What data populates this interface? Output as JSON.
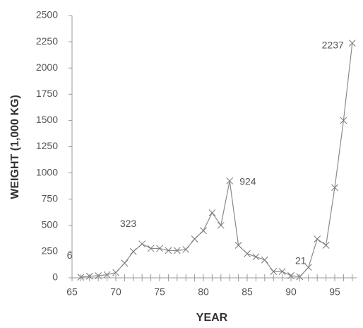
{
  "chart_data": {
    "type": "line",
    "x_label": "YEAR",
    "y_label": "WEIGHT (1,000 KG)",
    "x": [
      66,
      67,
      68,
      69,
      70,
      71,
      72,
      73,
      74,
      75,
      76,
      77,
      78,
      79,
      80,
      81,
      82,
      83,
      84,
      85,
      86,
      87,
      88,
      89,
      90,
      91,
      92,
      93,
      94,
      95,
      96,
      97
    ],
    "values": [
      6,
      15,
      20,
      30,
      50,
      140,
      250,
      323,
      280,
      280,
      260,
      260,
      270,
      370,
      450,
      620,
      500,
      924,
      310,
      230,
      200,
      170,
      60,
      60,
      21,
      10,
      100,
      370,
      310,
      860,
      1500,
      2237
    ],
    "value_labels": [
      "6",
      null,
      null,
      null,
      null,
      null,
      null,
      "323",
      null,
      null,
      null,
      null,
      null,
      null,
      null,
      null,
      null,
      "924",
      null,
      null,
      null,
      null,
      null,
      null,
      "21",
      null,
      null,
      null,
      null,
      null,
      null,
      "2237"
    ],
    "color": "#8a8a8a",
    "xlim": [
      65,
      97.5
    ],
    "xticks": [
      65,
      70,
      75,
      80,
      85,
      90,
      95
    ],
    "ylim": [
      0,
      2500
    ],
    "yticks": [
      0,
      250,
      500,
      750,
      1000,
      1250,
      1500,
      1750,
      2000,
      2250,
      2500
    ]
  }
}
